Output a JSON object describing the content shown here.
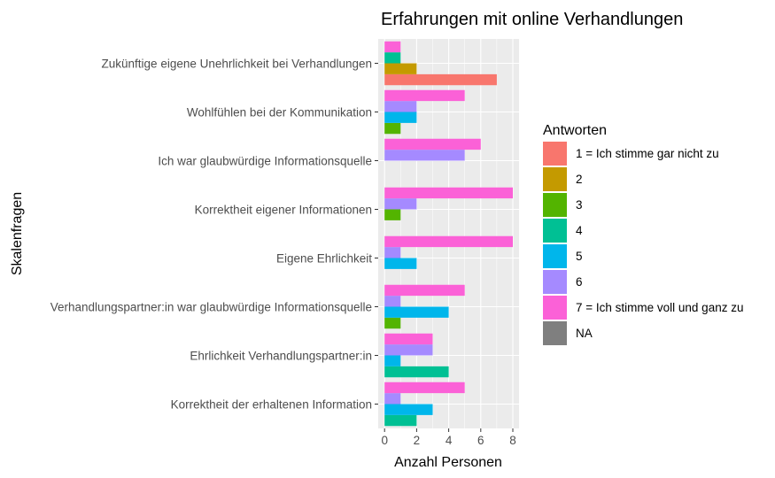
{
  "chart_data": {
    "type": "bar",
    "orientation": "horizontal",
    "title": "Erfahrungen mit online Verhandlungen",
    "xlabel": "Anzahl Personen",
    "ylabel": "Skalenfragen",
    "xlim": [
      0,
      8.4
    ],
    "x_ticks": [
      0,
      2,
      4,
      6,
      8
    ],
    "grid": true,
    "legend_title": "Antworten",
    "legend_position": "right",
    "categories": [
      "Zukünftige eigene Unehrlichkeit bei Verhandlungen",
      "Wohlfühlen bei der Kommunikation",
      "Ich war glaubwürdige Informationsquelle",
      "Korrektheit eigener Informationen",
      "Eigene Ehrlichkeit",
      "Verhandlungspartner:in war glaubwürdige Informationsquelle",
      "Ehrlichkeit Verhandlungspartner:in",
      "Korrektheit der erhaltenen Information"
    ],
    "series": [
      {
        "name": "1 = Ich stimme gar nicht zu",
        "color": "#F8766D",
        "values": [
          7,
          0,
          0,
          0,
          0,
          0,
          0,
          0
        ]
      },
      {
        "name": "2",
        "color": "#C49A00",
        "values": [
          2,
          0,
          0,
          0,
          0,
          0,
          0,
          0
        ]
      },
      {
        "name": "3",
        "color": "#53B400",
        "values": [
          0,
          1,
          0,
          1,
          0,
          1,
          0,
          0
        ]
      },
      {
        "name": "4",
        "color": "#00C094",
        "values": [
          1,
          0,
          0,
          0,
          0,
          0,
          4,
          2
        ]
      },
      {
        "name": "5",
        "color": "#00B6EB",
        "values": [
          0,
          2,
          0,
          0,
          2,
          4,
          1,
          3
        ]
      },
      {
        "name": "6",
        "color": "#A58AFF",
        "values": [
          0,
          2,
          5,
          2,
          1,
          1,
          3,
          1
        ]
      },
      {
        "name": "7 = Ich stimme voll und ganz zu",
        "color": "#FB61D7",
        "values": [
          1,
          5,
          6,
          8,
          8,
          5,
          3,
          5
        ]
      },
      {
        "name": "NA",
        "color": "#7F7F7F",
        "values": [
          0,
          0,
          0,
          0,
          0,
          0,
          0,
          0
        ]
      }
    ]
  }
}
